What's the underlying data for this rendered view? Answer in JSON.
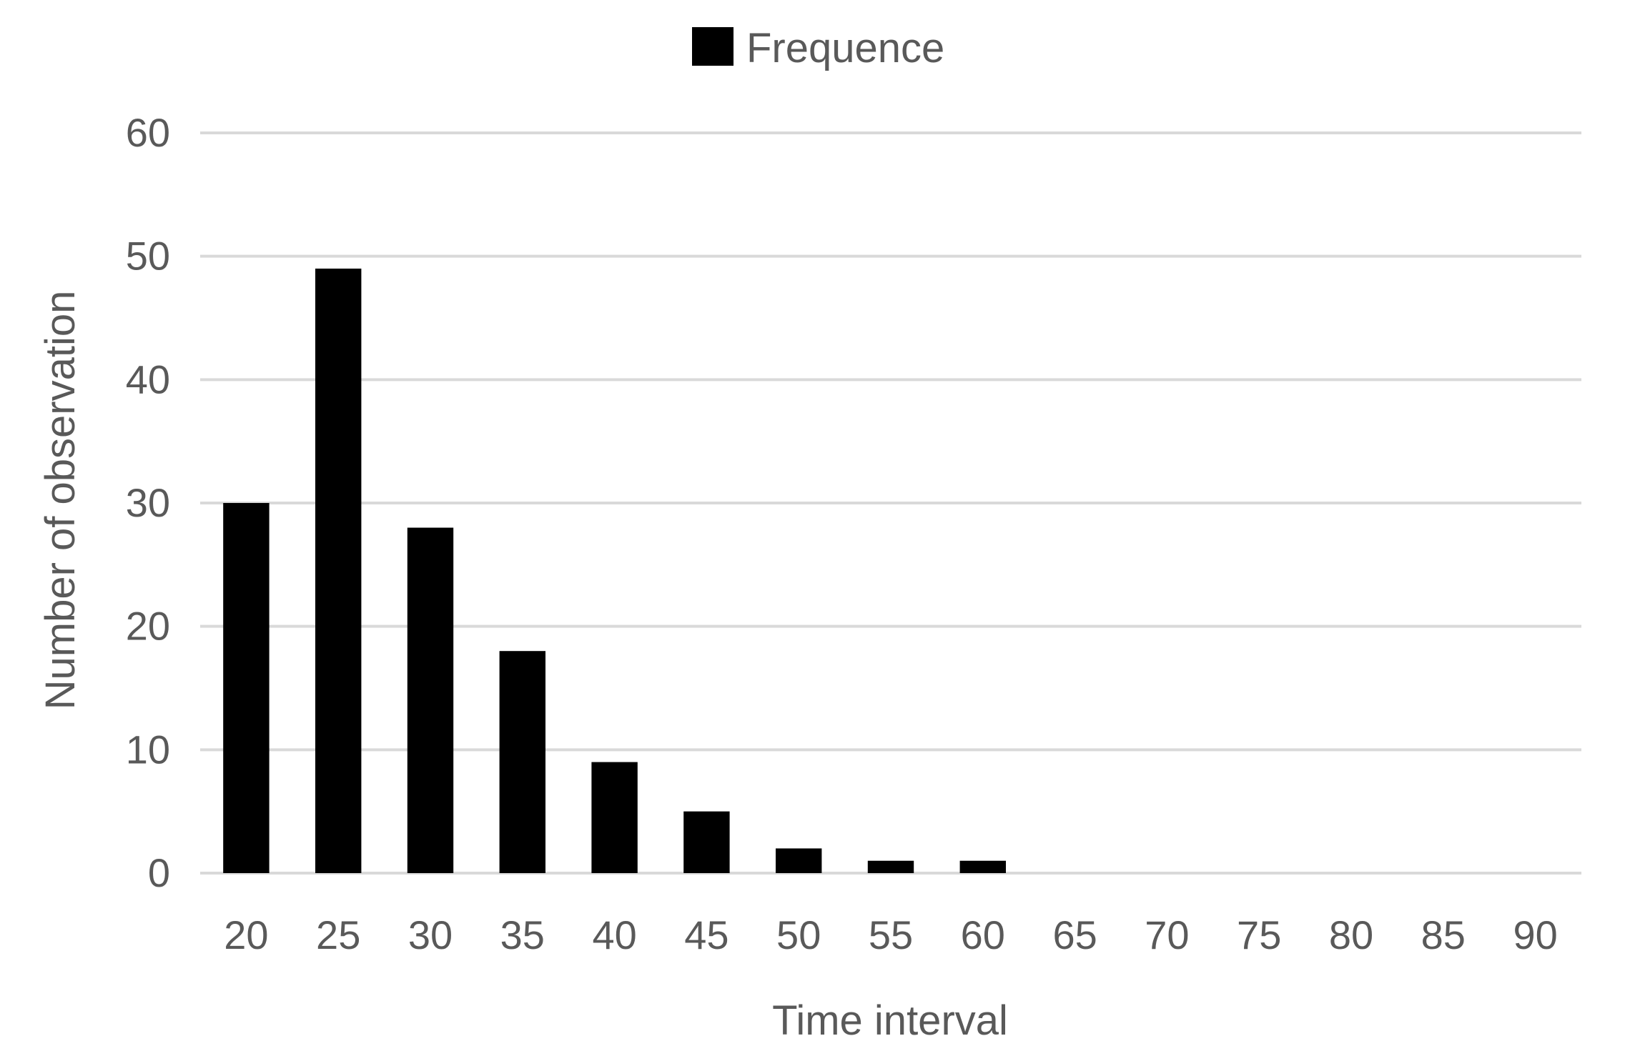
{
  "chart_data": {
    "type": "bar",
    "categories": [
      "20",
      "25",
      "30",
      "35",
      "40",
      "45",
      "50",
      "55",
      "60",
      "65",
      "70",
      "75",
      "80",
      "85",
      "90"
    ],
    "series": [
      {
        "name": "Frequence",
        "values": [
          30,
          49,
          28,
          18,
          9,
          5,
          2,
          1,
          1,
          0,
          0,
          0,
          0,
          0,
          0
        ],
        "color": "#000000"
      }
    ],
    "xlabel": "Time interval",
    "ylabel": "Number of observation",
    "ylim": [
      0,
      60
    ],
    "yticks": [
      0,
      10,
      20,
      30,
      40,
      50,
      60
    ],
    "grid": true,
    "legend": "top-center"
  }
}
